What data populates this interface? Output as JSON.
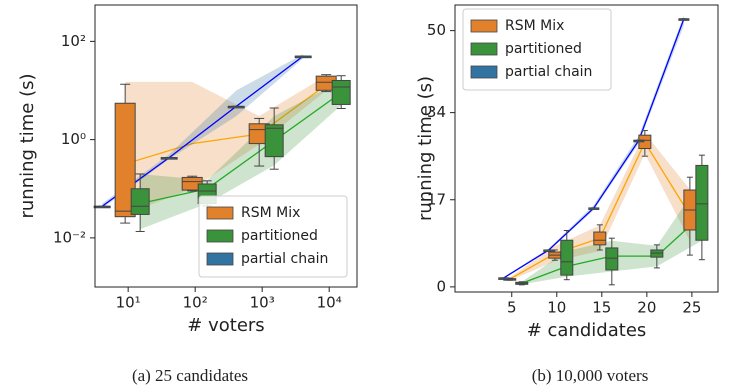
{
  "chart_data": [
    {
      "type": "box",
      "caption": "(a) 25 candidates",
      "xlabel": "# voters",
      "ylabel": "running time (s)",
      "x": [
        10,
        100,
        1000,
        10000
      ],
      "xscale": "log",
      "yscale": "log",
      "xlim": [
        3.2,
        26000
      ],
      "ylim": [
        0.001,
        550
      ],
      "xticks": [
        {
          "value": 10,
          "label": "10¹"
        },
        {
          "value": 100,
          "label": "10²"
        },
        {
          "value": 1000,
          "label": "10³"
        },
        {
          "value": 10000,
          "label": "10⁴"
        }
      ],
      "yticks": [
        {
          "value": 0.01,
          "label": "10⁻²"
        },
        {
          "value": 1,
          "label": "10⁰"
        },
        {
          "value": 100,
          "label": "10²"
        }
      ],
      "grid": false,
      "legend": "lower right",
      "series": [
        {
          "name": "RSM Mix",
          "color": "#e1812c",
          "line_color": "#ffa500",
          "min": [
            0.02,
            0.09,
            0.29,
            9.5
          ],
          "q1": [
            0.027,
            0.094,
            0.83,
            10.1
          ],
          "median": [
            0.035,
            0.14,
            1.6,
            14.7
          ],
          "q3": [
            5.5,
            0.17,
            2.1,
            19.6
          ],
          "max": [
            13.4,
            0.18,
            2.7,
            21
          ],
          "mean": [
            0.32,
            0.83,
            1.3,
            13
          ],
          "band_low": [
            0.03,
            0.1,
            0.8,
            10
          ],
          "band_high": [
            15,
            15,
            3,
            20
          ]
        },
        {
          "name": "partitioned",
          "color": "#3a923a",
          "line_color": "#22aa22",
          "min": [
            0.0135,
            0.045,
            0.25,
            4.3
          ],
          "q1": [
            0.03,
            0.05,
            0.45,
            5.2
          ],
          "median": [
            0.044,
            0.09,
            1.7,
            11.8
          ],
          "q3": [
            0.1,
            0.125,
            2,
            16
          ],
          "max": [
            0.2,
            0.145,
            4.4,
            20
          ],
          "mean": [
            0.05,
            0.1,
            0.95,
            9
          ],
          "band_low": [
            0.015,
            0.05,
            0.3,
            5
          ],
          "band_high": [
            0.2,
            0.15,
            3,
            16
          ]
        },
        {
          "name": "partial chain",
          "color": "#3274a1",
          "line_color": "#0000ff",
          "min": [
            0.044,
            0.43,
            4.75,
            50
          ],
          "q1": [
            0.044,
            0.43,
            4.75,
            50
          ],
          "median": [
            0.044,
            0.43,
            4.75,
            50
          ],
          "q3": [
            0.044,
            0.43,
            4.75,
            50
          ],
          "max": [
            0.044,
            0.43,
            4.75,
            50
          ],
          "mean": [
            0.044,
            0.43,
            4.75,
            50
          ],
          "band_low": [
            0.04,
            0.4,
            3,
            45
          ],
          "band_high": [
            0.05,
            0.5,
            10,
            55
          ]
        }
      ]
    },
    {
      "type": "box",
      "caption": "(b) 10,000 voters",
      "xlabel": "# candidates",
      "ylabel": "running time (s)",
      "x": [
        5,
        10,
        15,
        20,
        25
      ],
      "xscale": "linear",
      "yscale": "linear",
      "xlim": [
        -1.3,
        27.9
      ],
      "ylim": [
        -1,
        55
      ],
      "xticks": [
        5,
        10,
        15,
        20,
        25
      ],
      "yticks": [
        0,
        17,
        34,
        50
      ],
      "grid": false,
      "legend": "upper left",
      "series": [
        {
          "name": "RSM Mix",
          "color": "#e1812c",
          "line_color": "#ffa500",
          "min": [
            1.3,
            5.2,
            7.2,
            25.5,
            6.2
          ],
          "q1": [
            1.4,
            5.6,
            8.2,
            27,
            11.1
          ],
          "median": [
            1.5,
            6.2,
            9.1,
            28.6,
            15
          ],
          "q3": [
            1.6,
            6.8,
            10.7,
            29.6,
            18.9
          ],
          "max": [
            1.7,
            7.2,
            12.1,
            30.5,
            21.4
          ],
          "mean": [
            1.5,
            6.5,
            9.5,
            28.2,
            14
          ],
          "band_low": [
            1.2,
            5,
            7,
            26,
            9
          ],
          "band_high": [
            1.8,
            8,
            12,
            30,
            19
          ]
        },
        {
          "name": "partitioned",
          "color": "#3a923a",
          "line_color": "#22aa22",
          "min": [
            0.4,
            1.4,
            0.4,
            3.7,
            5.3
          ],
          "q1": [
            0.5,
            2.3,
            3.3,
            5.8,
            9.1
          ],
          "median": [
            0.7,
            4.9,
            5.6,
            6.6,
            16.2
          ],
          "q3": [
            0.9,
            9.1,
            7.6,
            7.2,
            23.7
          ],
          "max": [
            1,
            11,
            9.5,
            8.2,
            25.7
          ],
          "mean": [
            0.7,
            4,
            6,
            6,
            14
          ],
          "band_low": [
            0.5,
            2,
            3,
            4,
            9
          ],
          "band_high": [
            1,
            7,
            9,
            8,
            21
          ]
        },
        {
          "name": "partial chain",
          "color": "#3274a1",
          "line_color": "#0000ff",
          "min": [
            1.75,
            7.2,
            15.4,
            28.6,
            52.3
          ],
          "q1": [
            1.75,
            7.2,
            15.4,
            28.6,
            52.3
          ],
          "median": [
            1.75,
            7.2,
            15.4,
            28.6,
            52.3
          ],
          "q3": [
            1.75,
            7.2,
            15.4,
            28.6,
            52.3
          ],
          "max": [
            1.75,
            7.2,
            15.4,
            28.6,
            52.3
          ],
          "mean": [
            1.75,
            7.2,
            15.4,
            28.6,
            52.3
          ],
          "band_low": [
            1.6,
            7,
            15,
            28,
            51
          ],
          "band_high": [
            1.9,
            7.5,
            16,
            29.5,
            53
          ]
        }
      ]
    }
  ]
}
